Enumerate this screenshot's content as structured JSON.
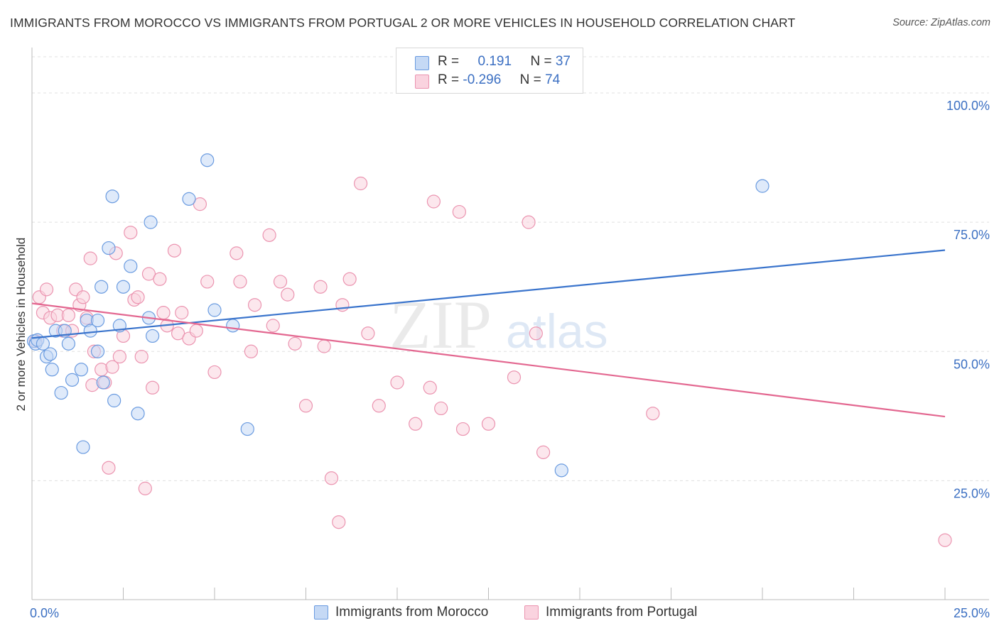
{
  "title": "IMMIGRANTS FROM MOROCCO VS IMMIGRANTS FROM PORTUGAL 2 OR MORE VEHICLES IN HOUSEHOLD CORRELATION CHART",
  "source": "Source: ZipAtlas.com",
  "watermark": {
    "zip": "ZIP",
    "atlas": "atlas"
  },
  "colors": {
    "morocco_fill": "#c5d9f5",
    "morocco_stroke": "#6a9be0",
    "morocco_line": "#3a74cc",
    "portugal_fill": "#fad3df",
    "portugal_stroke": "#eb94b0",
    "portugal_line": "#e36790",
    "axis_label": "#3b6fc2",
    "grid": "#e0e0e0"
  },
  "legend": {
    "rows": [
      {
        "r_label": "R =",
        "r_value": "0.191",
        "n_label": "N =",
        "n_value": "37"
      },
      {
        "r_label": "R =",
        "r_value": "-0.296",
        "n_label": "N =",
        "n_value": "74"
      }
    ]
  },
  "bottom_legend": [
    "Immigrants from Morocco",
    "Immigrants from Portugal"
  ],
  "chart_data": {
    "type": "scatter",
    "title": "IMMIGRANTS FROM MOROCCO VS IMMIGRANTS FROM PORTUGAL 2 OR MORE VEHICLES IN HOUSEHOLD CORRELATION CHART",
    "xlabel": "",
    "ylabel": "2 or more Vehicles in Household",
    "xlim": [
      0,
      25
    ],
    "ylim": [
      2,
      107
    ],
    "x_tick_labels": {
      "min": "0.0%",
      "max": "25.0%"
    },
    "y_ticks": [
      {
        "value": 25,
        "label": "25.0%"
      },
      {
        "value": 50,
        "label": "50.0%"
      },
      {
        "value": 75,
        "label": "75.0%"
      },
      {
        "value": 100,
        "label": "100.0%"
      }
    ],
    "series": [
      {
        "name": "Immigrants from Morocco",
        "r": 0.191,
        "n": 37,
        "trend": {
          "x": [
            0,
            25
          ],
          "y": [
            52.6,
            69.6
          ]
        },
        "points": [
          [
            0.05,
            52.0
          ],
          [
            0.1,
            51.5
          ],
          [
            0.15,
            52.2
          ],
          [
            0.3,
            51.5
          ],
          [
            0.4,
            49.0
          ],
          [
            0.5,
            49.5
          ],
          [
            0.55,
            46.5
          ],
          [
            0.65,
            54.0
          ],
          [
            0.8,
            42.0
          ],
          [
            0.9,
            54.0
          ],
          [
            1.0,
            51.5
          ],
          [
            1.1,
            44.5
          ],
          [
            1.35,
            46.5
          ],
          [
            1.4,
            31.5
          ],
          [
            1.5,
            56.0
          ],
          [
            1.6,
            54.0
          ],
          [
            1.8,
            56.0
          ],
          [
            1.8,
            50.0
          ],
          [
            1.9,
            62.5
          ],
          [
            1.95,
            44.0
          ],
          [
            2.1,
            70.0
          ],
          [
            2.2,
            80.0
          ],
          [
            2.25,
            40.5
          ],
          [
            2.4,
            55.0
          ],
          [
            2.5,
            62.5
          ],
          [
            2.7,
            66.5
          ],
          [
            2.9,
            38.0
          ],
          [
            3.2,
            56.5
          ],
          [
            3.25,
            75.0
          ],
          [
            3.3,
            53.0
          ],
          [
            4.3,
            79.5
          ],
          [
            4.8,
            87.0
          ],
          [
            5.0,
            58.0
          ],
          [
            5.5,
            55.0
          ],
          [
            5.9,
            35.0
          ],
          [
            14.5,
            27.0
          ],
          [
            20.0,
            82.0
          ]
        ]
      },
      {
        "name": "Immigrants from Portugal",
        "r": -0.296,
        "n": 74,
        "trend": {
          "x": [
            0,
            25
          ],
          "y": [
            59.3,
            37.4
          ]
        },
        "points": [
          [
            0.1,
            52.0
          ],
          [
            0.2,
            60.5
          ],
          [
            0.3,
            57.5
          ],
          [
            0.4,
            62.0
          ],
          [
            0.5,
            56.5
          ],
          [
            0.7,
            57.0
          ],
          [
            0.85,
            54.0
          ],
          [
            1.0,
            57.0
          ],
          [
            1.1,
            54.0
          ],
          [
            1.2,
            62.0
          ],
          [
            1.3,
            59.0
          ],
          [
            1.4,
            60.5
          ],
          [
            1.5,
            56.5
          ],
          [
            1.6,
            68.0
          ],
          [
            1.65,
            43.5
          ],
          [
            1.7,
            50.0
          ],
          [
            1.9,
            46.5
          ],
          [
            2.0,
            44.0
          ],
          [
            2.1,
            27.5
          ],
          [
            2.2,
            47.0
          ],
          [
            2.3,
            69.0
          ],
          [
            2.4,
            49.0
          ],
          [
            2.5,
            53.0
          ],
          [
            2.7,
            73.0
          ],
          [
            2.8,
            60.0
          ],
          [
            2.9,
            60.5
          ],
          [
            3.0,
            49.0
          ],
          [
            3.1,
            23.5
          ],
          [
            3.2,
            65.0
          ],
          [
            3.3,
            43.0
          ],
          [
            3.5,
            64.0
          ],
          [
            3.6,
            57.5
          ],
          [
            3.7,
            55.0
          ],
          [
            3.9,
            69.5
          ],
          [
            4.0,
            53.5
          ],
          [
            4.1,
            57.5
          ],
          [
            4.3,
            52.5
          ],
          [
            4.5,
            54.0
          ],
          [
            4.6,
            78.5
          ],
          [
            4.8,
            63.5
          ],
          [
            5.0,
            46.0
          ],
          [
            5.6,
            69.0
          ],
          [
            5.7,
            63.5
          ],
          [
            6.0,
            50.0
          ],
          [
            6.1,
            59.0
          ],
          [
            6.5,
            72.5
          ],
          [
            6.6,
            55.0
          ],
          [
            6.8,
            63.5
          ],
          [
            7.0,
            61.0
          ],
          [
            7.2,
            51.5
          ],
          [
            7.5,
            39.5
          ],
          [
            7.9,
            62.5
          ],
          [
            8.0,
            51.0
          ],
          [
            8.2,
            25.5
          ],
          [
            8.4,
            17.0
          ],
          [
            8.5,
            59.0
          ],
          [
            8.7,
            64.0
          ],
          [
            9.0,
            82.5
          ],
          [
            9.2,
            53.5
          ],
          [
            9.5,
            39.5
          ],
          [
            10.0,
            44.0
          ],
          [
            10.5,
            36.0
          ],
          [
            10.9,
            43.0
          ],
          [
            11.0,
            79.0
          ],
          [
            11.2,
            39.0
          ],
          [
            11.7,
            77.0
          ],
          [
            11.8,
            35.0
          ],
          [
            12.5,
            36.0
          ],
          [
            13.2,
            45.0
          ],
          [
            13.6,
            75.0
          ],
          [
            13.8,
            53.5
          ],
          [
            14.0,
            30.5
          ],
          [
            17.0,
            38.0
          ],
          [
            25.0,
            13.5
          ]
        ]
      }
    ]
  }
}
